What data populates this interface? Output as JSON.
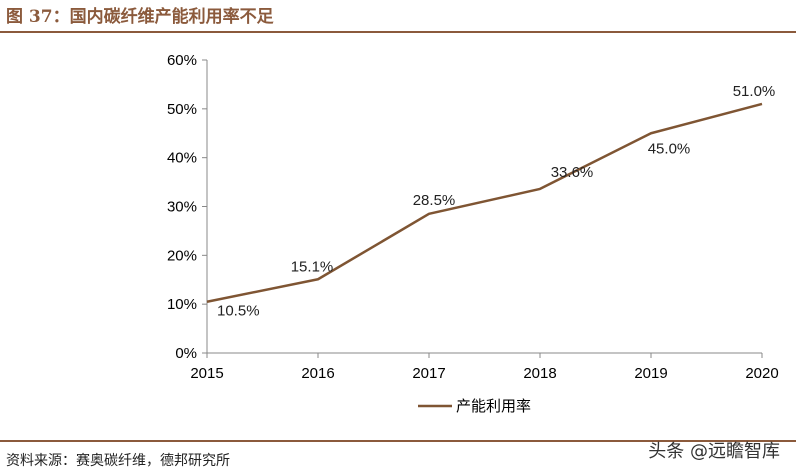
{
  "header": {
    "title": "图 37：国内碳纤维产能利用率不足"
  },
  "footer": {
    "source": "资料来源：赛奥碳纤维，德邦研究所",
    "watermark": "头条 @远瞻智库"
  },
  "colors": {
    "accent": "#8B5A3C",
    "line": "#7F5533"
  },
  "chart_data": {
    "type": "line",
    "title": "",
    "xlabel": "",
    "ylabel": "",
    "categories": [
      "2015",
      "2016",
      "2017",
      "2018",
      "2019",
      "2020"
    ],
    "series": [
      {
        "name": "产能利用率",
        "values": [
          10.5,
          15.1,
          28.5,
          33.6,
          45.0,
          51.0
        ],
        "labels": [
          "10.5%",
          "15.1%",
          "28.5%",
          "33.6%",
          "45.0%",
          "51.0%"
        ]
      }
    ],
    "ylim": [
      0,
      60
    ],
    "yticks": [
      "0%",
      "10%",
      "20%",
      "30%",
      "40%",
      "50%",
      "60%"
    ],
    "grid": false,
    "legend": "bottom"
  }
}
